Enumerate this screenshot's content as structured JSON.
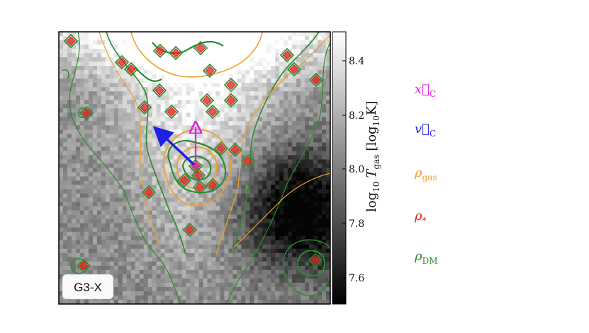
{
  "panel_label": "G3-X",
  "colorbar": {
    "label": "log10 T_gas [log10 K]",
    "label_parts": {
      "prefix": "log",
      "sub1": "10",
      "var": "T",
      "sub2": "gas",
      "open": "[log",
      "sub3": "10",
      "unit": "K]"
    },
    "ticks": [
      "8.4",
      "8.2",
      "8.0",
      "7.8",
      "7.6"
    ]
  },
  "legend": [
    {
      "sym": "x⃗",
      "sub": "C",
      "color": "#e020e0"
    },
    {
      "sym": "v⃗",
      "sub": "C",
      "color": "#1f1fe6"
    },
    {
      "sym": "ρ",
      "sub": "gas",
      "color": "#f0a030"
    },
    {
      "sym": "ρ",
      "sub": "*",
      "color": "#e62020"
    },
    {
      "sym": "ρ",
      "sub": "DM",
      "color": "#2e8b2e"
    }
  ],
  "colors": {
    "gas": "#f0a030",
    "stars": "#e62020",
    "dm": "#2e8b2e",
    "xc": "#e020e0",
    "vc": "#1f1fe6"
  },
  "chart_data": {
    "type": "heatmap",
    "colorbar_range": [
      7.5,
      8.5
    ],
    "colormap": "gray",
    "series": [
      {
        "name": "x⃗C",
        "kind": "arrow",
        "direction": "up"
      },
      {
        "name": "v⃗C",
        "kind": "arrow",
        "direction": "up-left"
      },
      {
        "name": "ρgas",
        "kind": "contour"
      },
      {
        "name": "ρ*",
        "kind": "contour"
      },
      {
        "name": "ρDM",
        "kind": "contour"
      }
    ]
  }
}
